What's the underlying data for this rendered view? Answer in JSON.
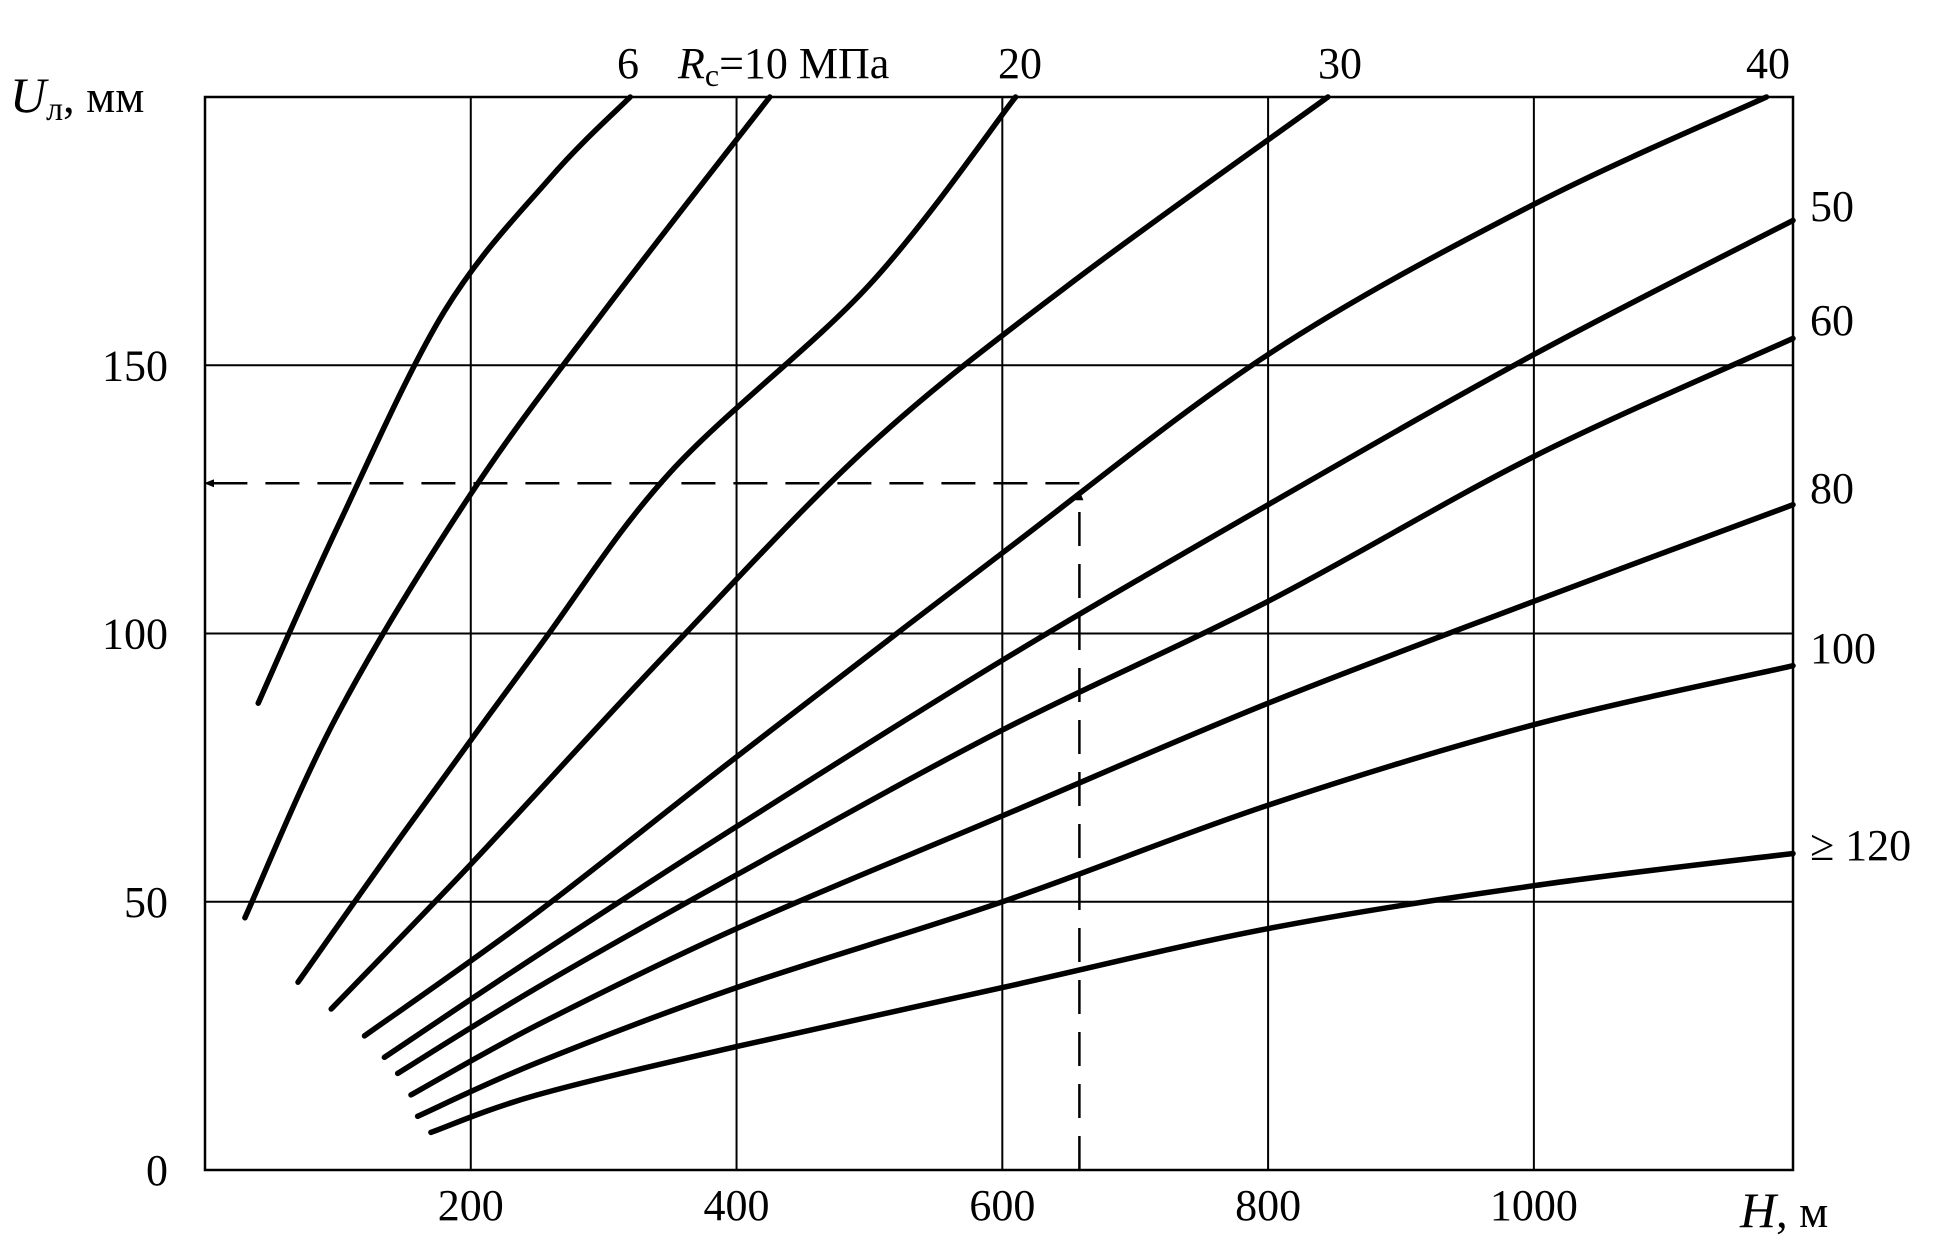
{
  "chart_data": {
    "type": "line",
    "title": "",
    "xlabel": "H, м",
    "ylabel": "Uл, мм",
    "x_ticks": [
      200,
      400,
      600,
      800,
      1000
    ],
    "y_ticks": [
      0,
      50,
      100,
      150
    ],
    "xlim": [
      0,
      1195
    ],
    "ylim": [
      0,
      200
    ],
    "grid": true,
    "series_label_prefix": "Rс=",
    "series_label_unit": " МПа",
    "series": [
      {
        "name": "6",
        "points": [
          [
            40,
            87
          ],
          [
            100,
            120
          ],
          [
            180,
            160
          ],
          [
            260,
            185
          ],
          [
            320,
            200
          ]
        ]
      },
      {
        "name": "10",
        "points": [
          [
            30,
            47
          ],
          [
            100,
            85
          ],
          [
            200,
            126
          ],
          [
            300,
            160
          ],
          [
            425,
            200
          ]
        ]
      },
      {
        "name": "",
        "points": [
          [
            70,
            35
          ],
          [
            150,
            63
          ],
          [
            250,
            97
          ],
          [
            350,
            130
          ],
          [
            500,
            165
          ],
          [
            610,
            200
          ]
        ]
      },
      {
        "name": "20",
        "points": [
          [
            95,
            30
          ],
          [
            200,
            57
          ],
          [
            350,
            97
          ],
          [
            500,
            135
          ],
          [
            650,
            165
          ],
          [
            845,
            200
          ]
        ]
      },
      {
        "name": "30",
        "points": [
          [
            120,
            25
          ],
          [
            250,
            48
          ],
          [
            400,
            77
          ],
          [
            600,
            115
          ],
          [
            800,
            152
          ],
          [
            1000,
            180
          ],
          [
            1175,
            200
          ]
        ]
      },
      {
        "name": "40",
        "points": [
          [
            135,
            21
          ],
          [
            250,
            40
          ],
          [
            400,
            64
          ],
          [
            600,
            95
          ],
          [
            800,
            124
          ],
          [
            1000,
            152
          ],
          [
            1195,
            177
          ]
        ]
      },
      {
        "name": "50",
        "points": [
          [
            145,
            18
          ],
          [
            250,
            34
          ],
          [
            400,
            55
          ],
          [
            600,
            82
          ],
          [
            800,
            106
          ],
          [
            1000,
            133
          ],
          [
            1195,
            155
          ]
        ]
      },
      {
        "name": "60",
        "points": [
          [
            155,
            14
          ],
          [
            250,
            27
          ],
          [
            400,
            45
          ],
          [
            600,
            66
          ],
          [
            800,
            87
          ],
          [
            1000,
            106
          ],
          [
            1195,
            124
          ]
        ]
      },
      {
        "name": "80",
        "points": [
          [
            160,
            10
          ],
          [
            250,
            20
          ],
          [
            400,
            34
          ],
          [
            600,
            50
          ],
          [
            800,
            68
          ],
          [
            1000,
            83
          ],
          [
            1195,
            94
          ]
        ]
      },
      {
        "name": "100",
        "points": [
          [
            170,
            7
          ],
          [
            250,
            14
          ],
          [
            400,
            23
          ],
          [
            600,
            34
          ],
          [
            800,
            45
          ],
          [
            1000,
            53
          ],
          [
            1195,
            59
          ]
        ]
      },
      {
        "name": "≥ 120",
        "points": []
      }
    ],
    "annotations": [
      {
        "type": "arrow",
        "from": [
          658,
          0
        ],
        "to": [
          658,
          128
        ]
      },
      {
        "type": "arrow",
        "from": [
          658,
          128
        ],
        "to": [
          0,
          128
        ]
      }
    ]
  }
}
